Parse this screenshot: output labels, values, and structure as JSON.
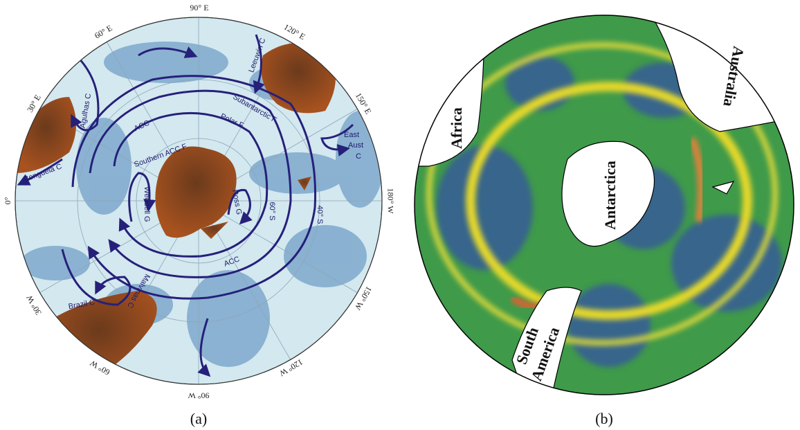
{
  "panel_a": {
    "meridian_labels": [
      "90° E",
      "60° E",
      "120° E",
      "30° E",
      "150° E",
      "0°",
      "180° W",
      "30° W",
      "150° W",
      "60° W",
      "120° W",
      "90° W"
    ],
    "current_labels": [
      "Leeuwin C",
      "Agulhas C",
      "Subantarctic F",
      "Polar F",
      "ACC",
      "Southern ACC F",
      "Benguela C",
      "Weddell G",
      "Ross G",
      "60° S",
      "40° S",
      "ACC",
      "Brazil C",
      "Malvinas C"
    ],
    "east_aust_c": [
      "East",
      "Aust",
      "C"
    ],
    "caption": "(a)"
  },
  "panel_b": {
    "labels": [
      "Africa",
      "Australia",
      "Antarctica"
    ],
    "south_america": [
      "South",
      "America"
    ],
    "caption": "(b)"
  }
}
